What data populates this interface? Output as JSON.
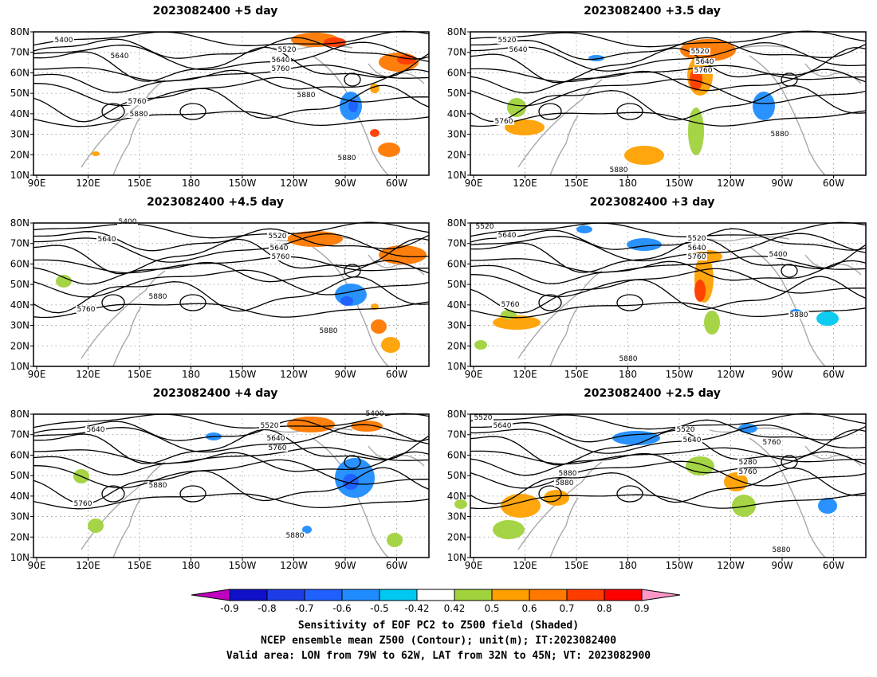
{
  "panels": [
    {
      "id": "p5",
      "title": "2023082400 +5 day",
      "contour_labels": [
        "5400",
        "5640",
        "5520",
        "5640",
        "5760",
        "5760",
        "5880",
        "5880",
        "5880"
      ]
    },
    {
      "id": "p35",
      "title": "2023082400 +3.5 day",
      "contour_labels": [
        "5520",
        "5640",
        "5520",
        "5640",
        "5760",
        "5760",
        "5880",
        "5880"
      ]
    },
    {
      "id": "p45",
      "title": "2023082400 +4.5 day",
      "contour_labels": [
        "5400",
        "5640",
        "5520",
        "5640",
        "5760",
        "5760",
        "5880",
        "5880"
      ]
    },
    {
      "id": "p3",
      "title": "2023082400 +3 day",
      "contour_labels": [
        "5520",
        "5640",
        "5520",
        "5640",
        "5760",
        "5400",
        "5760",
        "5880",
        "5880"
      ]
    },
    {
      "id": "p4",
      "title": "2023082400 +4 day",
      "contour_labels": [
        "5640",
        "5520",
        "5640",
        "5760",
        "5400",
        "5760",
        "5880",
        "5880"
      ]
    },
    {
      "id": "p25",
      "title": "2023082400 +2.5 day",
      "contour_labels": [
        "5520",
        "5640",
        "5520",
        "5640",
        "5760",
        "5280",
        "5760",
        "5880",
        "5880",
        "5880"
      ]
    }
  ],
  "map_axes": {
    "lat_labels": [
      "80N",
      "70N",
      "60N",
      "50N",
      "40N",
      "30N",
      "20N",
      "10N"
    ],
    "lon_labels": [
      "90E",
      "120E",
      "150E",
      "180",
      "150W",
      "120W",
      "90W",
      "60W"
    ]
  },
  "colorbar": {
    "levels": [
      "-0.9",
      "-0.8",
      "-0.7",
      "-0.6",
      "-0.5",
      "-0.42",
      "0.42",
      "0.5",
      "0.6",
      "0.7",
      "0.8",
      "0.9"
    ],
    "colors": [
      "#c000c0",
      "#1010c8",
      "#1e3ce6",
      "#2060ff",
      "#1e8cff",
      "#00c8f0",
      "#ffffff",
      "#a0d23c",
      "#ffa000",
      "#ff7800",
      "#ff3c00",
      "#ff0000",
      "#ff96c8"
    ]
  },
  "shading_colors": {
    "green": "#a0d23c",
    "orange": "#ffa000",
    "dark_orange": "#ff7800",
    "red_orange": "#ff3c00",
    "blue": "#1e8cff",
    "light_blue": "#00c8f0",
    "dark_blue": "#2060ff"
  },
  "caption": {
    "line1": "Sensitivity of EOF PC2 to Z500 field (Shaded)",
    "line2": "NCEP ensemble mean Z500 (Contour); unit(m); IT:2023082400",
    "line3": "Valid area: LON from 79W to 62W, LAT from 32N to 45N; VT: 2023082900"
  }
}
